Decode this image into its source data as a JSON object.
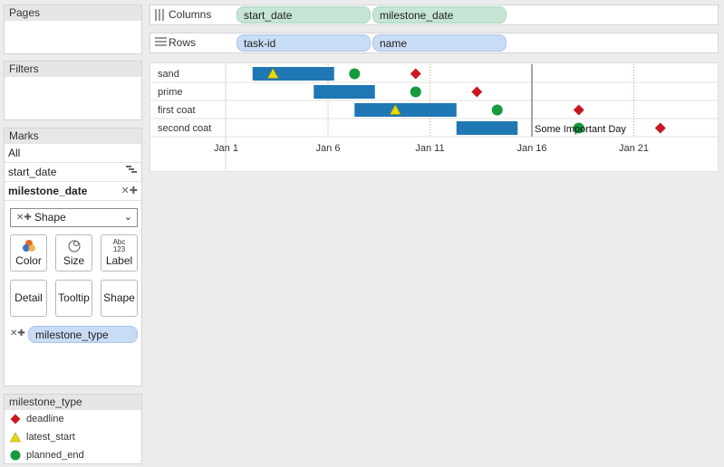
{
  "pages": {
    "title": "Pages"
  },
  "filters": {
    "title": "Filters"
  },
  "marks": {
    "title": "Marks",
    "all_label": "All",
    "field1": "start_date",
    "field2": "milestone_date",
    "mark_type": "Shape",
    "buttons": {
      "color": "Color",
      "size": "Size",
      "label": "Label",
      "label_icon_top": "Abc",
      "label_icon_bottom": "123",
      "detail": "Detail",
      "tooltip": "Tooltip",
      "shape": "Shape"
    },
    "shape_pill": "milestone_type"
  },
  "columns": {
    "label": "Columns",
    "pills": [
      "start_date",
      "milestone_date"
    ]
  },
  "rows": {
    "label": "Rows",
    "pills": [
      "task-id",
      "name"
    ]
  },
  "legend": {
    "title": "milestone_type",
    "items": [
      {
        "label": "deadline",
        "shape": "diamond",
        "color": "#c8181e"
      },
      {
        "label": "latest_start",
        "shape": "triangle",
        "color": "#e5d900"
      },
      {
        "label": "planned_end",
        "shape": "circle",
        "color": "#159a3c"
      }
    ]
  },
  "chart_data": {
    "type": "gantt",
    "x_axis": {
      "min_day": 0,
      "max_day": 25,
      "ticks": [
        {
          "day": 1,
          "label": "Jan 1"
        },
        {
          "day": 6,
          "label": "Jan 6"
        },
        {
          "day": 11,
          "label": "Jan 11"
        },
        {
          "day": 16,
          "label": "Jan 16"
        },
        {
          "day": 21,
          "label": "Jan 21"
        }
      ]
    },
    "rows": [
      "sand",
      "prime",
      "first coat",
      "second coat"
    ],
    "bar_color": "#1f77b4",
    "bars": [
      {
        "row": 0,
        "start": 2.3,
        "end": 6.3
      },
      {
        "row": 1,
        "start": 5.3,
        "end": 8.3
      },
      {
        "row": 2,
        "start": 7.3,
        "end": 12.3
      },
      {
        "row": 3,
        "start": 12.3,
        "end": 15.3
      }
    ],
    "milestones": [
      {
        "row": 0,
        "day": 3.3,
        "type": "latest_start"
      },
      {
        "row": 0,
        "day": 7.3,
        "type": "planned_end"
      },
      {
        "row": 0,
        "day": 10.3,
        "type": "deadline"
      },
      {
        "row": 1,
        "day": 10.3,
        "type": "planned_end"
      },
      {
        "row": 1,
        "day": 13.3,
        "type": "deadline"
      },
      {
        "row": 2,
        "day": 9.3,
        "type": "latest_start"
      },
      {
        "row": 2,
        "day": 14.3,
        "type": "planned_end"
      },
      {
        "row": 2,
        "day": 18.3,
        "type": "deadline"
      },
      {
        "row": 3,
        "day": 18.3,
        "type": "planned_end"
      },
      {
        "row": 3,
        "day": 22.3,
        "type": "deadline"
      }
    ],
    "reference_lines": [
      {
        "day": 16,
        "label": "Some Important Day"
      }
    ],
    "dotted_gridlines": [
      6,
      11,
      16,
      21
    ]
  }
}
